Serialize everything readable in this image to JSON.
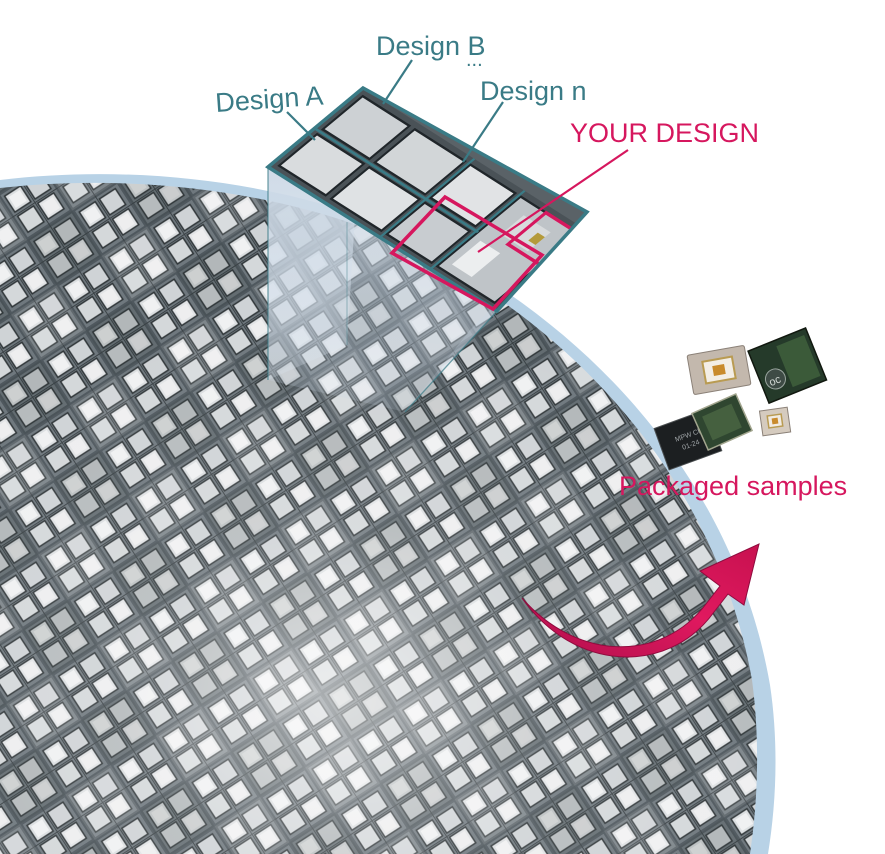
{
  "labels": {
    "design_a": "Design A",
    "design_b": "Design B",
    "design_b_ellipsis": "...",
    "design_n": "Design n",
    "your_design": "YOUR DESIGN",
    "packaged_samples": "Packaged samples"
  },
  "package_chip_text": {
    "logo": "oc",
    "small_label": "MPW Chip",
    "small_code": "01-24"
  },
  "colors": {
    "teal": "#3a7b86",
    "magenta": "#d6175e",
    "wafer_edge": "#b8d2e6",
    "die_dark": "#565e63",
    "die_light": "#c9ced1"
  }
}
